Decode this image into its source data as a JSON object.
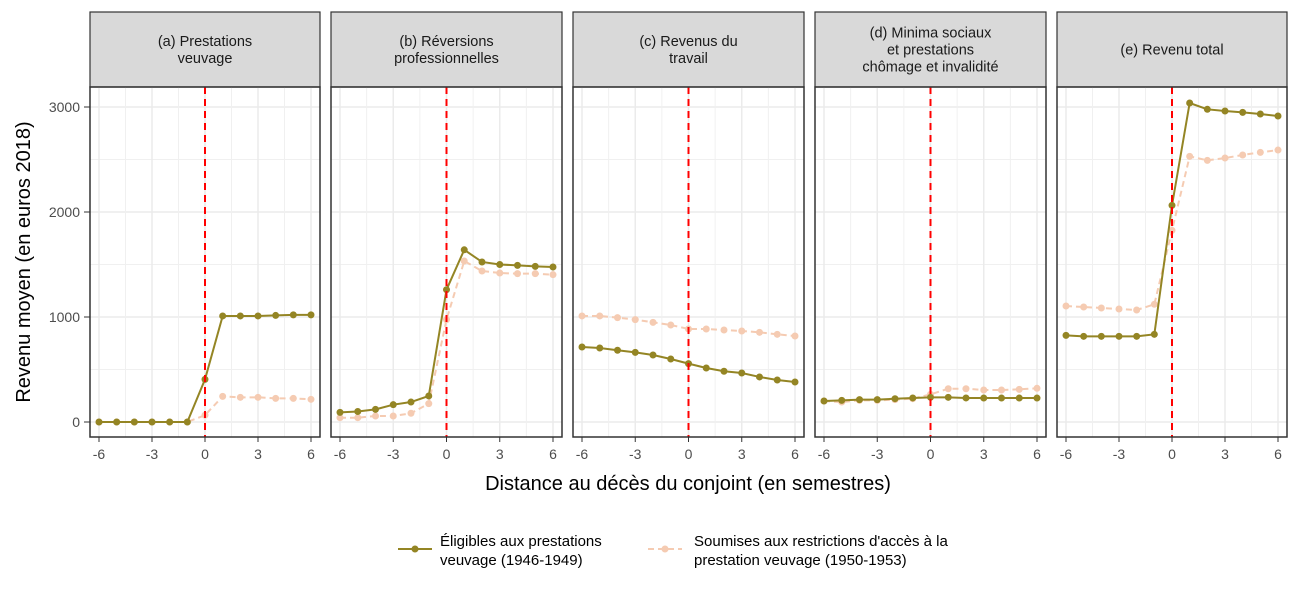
{
  "chart_data": {
    "type": "line",
    "ylabel": "Revenu moyen (en euros 2018)",
    "xlabel": "Distance au décès du conjoint (en semestres)",
    "ylim": [
      -150,
      3150
    ],
    "xlim": [
      -6.5,
      6.5
    ],
    "yticks": [
      0,
      1000,
      2000,
      3000
    ],
    "xticks": [
      -6,
      -3,
      0,
      3,
      6
    ],
    "vline": 0,
    "grid": true,
    "legend_position": "bottom",
    "x": [
      -6,
      -5,
      -4,
      -3,
      -2,
      -1,
      0,
      1,
      2,
      3,
      4,
      5,
      6
    ],
    "series_styles": [
      {
        "name": "Éligibles aux prestations veuvage (1946-1949)",
        "color": "#948524",
        "dash": "solid"
      },
      {
        "name": "Soumises aux restrictions d'accès à la prestation veuvage (1950-1953)",
        "color": "#f5cbb2",
        "dash": "dashed"
      }
    ],
    "legend_lines": [
      [
        "Éligibles aux prestations",
        "veuvage (1946-1949)"
      ],
      [
        "Soumises aux restrictions d'accès à la",
        "prestation veuvage (1950-1953)"
      ]
    ],
    "panels": [
      {
        "title": [
          "(a) Prestations",
          "veuvage"
        ],
        "series": [
          {
            "name": "Éligibles",
            "values": [
              0,
              0,
              0,
              0,
              0,
              0,
              406,
              1010,
              1010,
              1010,
              1015,
              1020,
              1020
            ]
          },
          {
            "name": "Soumises",
            "values": [
              0,
              0,
              0,
              0,
              0,
              0,
              65,
              244,
              235,
              235,
              225,
              225,
              216
            ]
          }
        ]
      },
      {
        "title": [
          "(b) Réversions",
          "professionnelles"
        ],
        "series": [
          {
            "name": "Éligibles",
            "values": [
              92,
              100,
              120,
              165,
              190,
              248,
              1260,
              1640,
              1524,
              1500,
              1492,
              1482,
              1476
            ]
          },
          {
            "name": "Soumises",
            "values": [
              41,
              41,
              57,
              57,
              83,
              175,
              975,
              1533,
              1438,
              1419,
              1413,
              1413,
              1403
            ]
          }
        ]
      },
      {
        "title": [
          "(c) Revenus du",
          "travail"
        ],
        "series": [
          {
            "name": "Éligibles",
            "values": [
              714,
              705,
              683,
              663,
              638,
              600,
              556,
              514,
              483,
              467,
              429,
              400,
              381
            ]
          },
          {
            "name": "Soumises",
            "values": [
              1010,
              1010,
              994,
              975,
              949,
              924,
              886,
              886,
              876,
              867,
              854,
              835,
              819
            ]
          }
        ]
      },
      {
        "title": [
          "(d) Minima sociaux",
          "et prestations",
          "chômage et invalidité"
        ],
        "series": [
          {
            "name": "Éligibles",
            "values": [
              200,
              206,
              213,
              213,
              222,
              229,
              235,
              235,
              229,
              228,
              228,
              228,
              228
            ]
          },
          {
            "name": "Soumises",
            "values": [
              200,
              190,
              206,
              206,
              213,
              222,
              263,
              317,
              317,
              305,
              305,
              311,
              321
            ]
          }
        ]
      },
      {
        "title": [
          "(e) Revenu total"
        ],
        "series": [
          {
            "name": "Éligibles",
            "values": [
              825,
              816,
              816,
              816,
              816,
              835,
              2063,
              3038,
              2978,
              2962,
              2949,
              2933,
              2914
            ]
          },
          {
            "name": "Soumises",
            "values": [
              1105,
              1095,
              1086,
              1076,
              1067,
              1121,
              1825,
              2530,
              2492,
              2514,
              2543,
              2568,
              2590
            ]
          }
        ]
      }
    ]
  }
}
